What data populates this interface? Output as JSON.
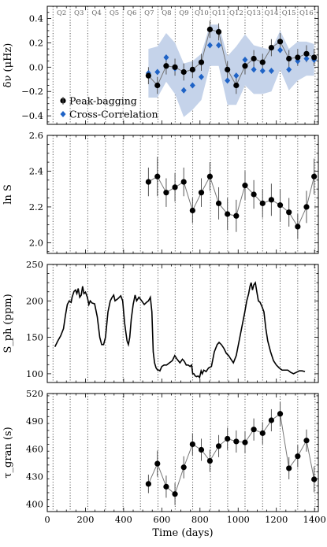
{
  "figure": {
    "xlabel": "Time (days)",
    "x_tick_labels": [
      "0",
      "200",
      "400",
      "600",
      "800",
      "1000",
      "1200",
      "1400"
    ]
  },
  "quarters": {
    "labels": [
      "Q2",
      "Q3",
      "Q4",
      "Q5",
      "Q6",
      "Q7",
      "Q8",
      "Q9",
      "Q10",
      "Q11",
      "Q12",
      "Q13",
      "Q14",
      "Q15",
      "Q16"
    ],
    "boundaries": [
      30,
      120,
      212,
      305,
      397,
      488,
      580,
      670,
      762,
      855,
      945,
      1036,
      1128,
      1220,
      1312,
      1403
    ]
  },
  "colors": {
    "peak": "#000000",
    "cross": "#1f63c6",
    "band": "#c5d3ea",
    "line": "#777777"
  },
  "chart_data": [
    {
      "type": "line",
      "ylabel": "δν (μHz)",
      "xlim": [
        0,
        1420
      ],
      "ylim": [
        -0.47,
        0.5
      ],
      "yticks": [
        -0.4,
        -0.2,
        0.0,
        0.2,
        0.4
      ],
      "ytick_labels": [
        "−0.4",
        "−0.2",
        "0.0",
        "0.2",
        "0.4"
      ],
      "legend": {
        "position": "lower-left",
        "entries": [
          "Peak-bagging",
          "Cross-Correlation"
        ]
      },
      "series": [
        {
          "name": "Peak-bagging",
          "x": [
            530,
            577,
            623,
            669,
            715,
            761,
            807,
            852,
            898,
            944,
            990,
            1036,
            1082,
            1128,
            1174,
            1220,
            1266,
            1312,
            1358,
            1398
          ],
          "y": [
            -0.07,
            -0.15,
            0.01,
            0.0,
            -0.04,
            -0.02,
            0.04,
            0.31,
            0.29,
            -0.02,
            -0.15,
            0.01,
            0.07,
            0.04,
            0.16,
            0.21,
            0.07,
            0.08,
            0.11,
            0.08
          ],
          "yerr": [
            0.07,
            0.07,
            0.07,
            0.07,
            0.07,
            0.07,
            0.07,
            0.07,
            0.07,
            0.07,
            0.07,
            0.07,
            0.07,
            0.07,
            0.07,
            0.07,
            0.07,
            0.07,
            0.07,
            0.07
          ]
        },
        {
          "name": "Cross-Correlation",
          "x": [
            530,
            577,
            623,
            669,
            715,
            761,
            807,
            852,
            898,
            944,
            990,
            1036,
            1082,
            1128,
            1174,
            1220,
            1266,
            1312,
            1358,
            1398
          ],
          "y": [
            -0.05,
            -0.04,
            0.08,
            -0.01,
            -0.19,
            -0.15,
            -0.08,
            0.18,
            0.18,
            -0.11,
            -0.07,
            0.06,
            -0.02,
            -0.03,
            -0.03,
            0.14,
            -0.02,
            0.05,
            0.07,
            0.06
          ],
          "band_half_width": [
            0.2,
            0.21,
            0.2,
            0.21,
            0.22,
            0.2,
            0.19,
            0.17,
            0.17,
            0.2,
            0.24,
            0.21,
            0.2,
            0.19,
            0.17,
            0.16,
            0.17,
            0.16,
            0.14,
            0.13
          ]
        }
      ]
    },
    {
      "type": "line",
      "ylabel": "ln S",
      "xlim": [
        0,
        1420
      ],
      "ylim": [
        1.94,
        2.6
      ],
      "yticks": [
        2.0,
        2.2,
        2.4,
        2.6
      ],
      "ytick_labels": [
        "2.0",
        "2.2",
        "2.4",
        "2.6"
      ],
      "series": [
        {
          "x": [
            530,
            577,
            623,
            669,
            715,
            761,
            807,
            852,
            898,
            944,
            990,
            1036,
            1082,
            1128,
            1174,
            1220,
            1266,
            1312,
            1358,
            1398
          ],
          "y": [
            2.34,
            2.37,
            2.28,
            2.31,
            2.34,
            2.18,
            2.28,
            2.37,
            2.22,
            2.16,
            2.15,
            2.32,
            2.27,
            2.22,
            2.24,
            2.21,
            2.17,
            2.09,
            2.2,
            2.37
          ],
          "yerr": [
            0.08,
            0.11,
            0.08,
            0.08,
            0.08,
            0.07,
            0.08,
            0.08,
            0.09,
            0.09,
            0.09,
            0.08,
            0.08,
            0.08,
            0.09,
            0.09,
            0.08,
            0.07,
            0.09,
            0.1
          ]
        }
      ]
    },
    {
      "type": "line",
      "ylabel": "S_ph (ppm)",
      "xlim": [
        0,
        1420
      ],
      "ylim": [
        88,
        250
      ],
      "yticks": [
        100,
        150,
        200,
        250
      ],
      "ytick_labels": [
        "100",
        "150",
        "200",
        "250"
      ],
      "series": [
        {
          "x": [
            40,
            55,
            70,
            85,
            95,
            105,
            115,
            125,
            130,
            140,
            148,
            155,
            162,
            170,
            178,
            185,
            192,
            200,
            210,
            218,
            225,
            235,
            248,
            262,
            275,
            285,
            295,
            305,
            318,
            330,
            340,
            348,
            355,
            370,
            385,
            395,
            400,
            405,
            410,
            418,
            425,
            432,
            440,
            450,
            460,
            468,
            480,
            495,
            508,
            520,
            530,
            540,
            548,
            555,
            562,
            570,
            578,
            585,
            590,
            600,
            612,
            625,
            640,
            655,
            668,
            680,
            695,
            708,
            718,
            728,
            738,
            748,
            756,
            762,
            768,
            775,
            782,
            790,
            798,
            806,
            812,
            820,
            832,
            845,
            860,
            875,
            890,
            900,
            912,
            925,
            938,
            950,
            962,
            975,
            990,
            1005,
            1020,
            1035,
            1045,
            1055,
            1062,
            1068,
            1075,
            1082,
            1090,
            1098,
            1106,
            1115,
            1125,
            1135,
            1145,
            1155,
            1170,
            1185,
            1200,
            1215,
            1230,
            1245,
            1260,
            1275,
            1290,
            1305,
            1320,
            1335,
            1350
          ],
          "y": [
            137,
            145,
            152,
            162,
            180,
            195,
            200,
            198,
            205,
            213,
            215,
            210,
            217,
            205,
            208,
            220,
            210,
            212,
            205,
            195,
            200,
            197,
            196,
            178,
            150,
            140,
            140,
            150,
            185,
            200,
            205,
            208,
            200,
            203,
            207,
            200,
            185,
            170,
            160,
            145,
            140,
            150,
            175,
            195,
            208,
            200,
            205,
            200,
            195,
            198,
            200,
            205,
            185,
            130,
            115,
            108,
            105,
            105,
            104,
            110,
            112,
            112,
            115,
            118,
            125,
            120,
            115,
            120,
            117,
            112,
            112,
            110,
            112,
            100,
            100,
            97,
            96,
            97,
            95,
            104,
            100,
            105,
            103,
            108,
            110,
            130,
            140,
            143,
            140,
            135,
            128,
            125,
            120,
            115,
            125,
            145,
            165,
            185,
            200,
            210,
            220,
            225,
            215,
            222,
            225,
            212,
            200,
            198,
            192,
            185,
            162,
            145,
            130,
            118,
            112,
            108,
            105,
            105,
            105,
            102,
            100,
            102,
            104,
            104,
            103
          ]
        }
      ]
    },
    {
      "type": "line",
      "ylabel": "τ_gran (s)",
      "xlim": [
        0,
        1420
      ],
      "ylim": [
        392,
        520
      ],
      "yticks": [
        400,
        430,
        460,
        490,
        520
      ],
      "ytick_labels": [
        "400",
        "430",
        "460",
        "490",
        "520"
      ],
      "series": [
        {
          "x": [
            530,
            577,
            623,
            669,
            715,
            761,
            807,
            852,
            898,
            944,
            990,
            1036,
            1082,
            1128,
            1174,
            1220,
            1266,
            1312,
            1358,
            1398
          ],
          "y": [
            422,
            444,
            419,
            411,
            440,
            465,
            459,
            447,
            463,
            471,
            468,
            467,
            481,
            477,
            491,
            498,
            439,
            452,
            469,
            427
          ],
          "yerr": [
            10,
            14,
            12,
            12,
            12,
            12,
            12,
            12,
            12,
            12,
            12,
            12,
            12,
            12,
            12,
            13,
            12,
            12,
            12,
            14
          ]
        }
      ]
    }
  ]
}
